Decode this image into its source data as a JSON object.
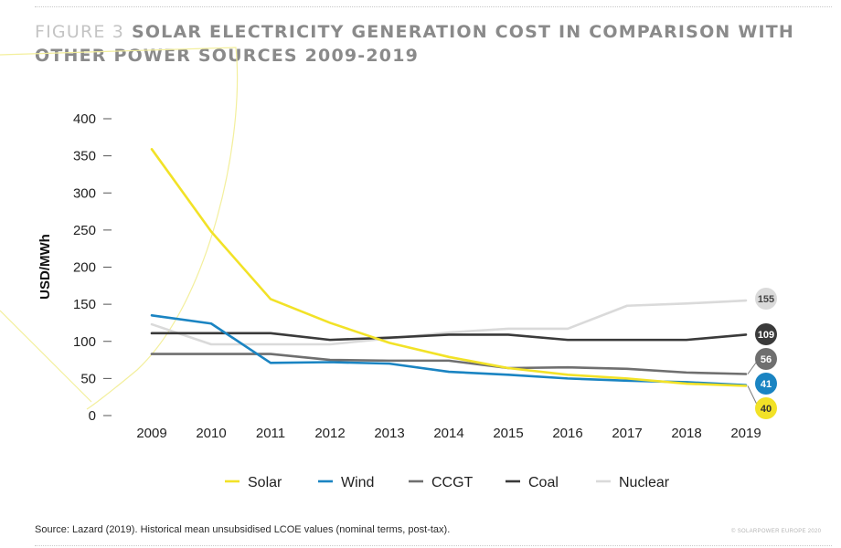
{
  "header": {
    "figure_label": "FIGURE 3",
    "title": "SOLAR ELECTRICITY GENERATION COST IN COMPARISON WITH OTHER POWER SOURCES 2009-2019"
  },
  "footer": {
    "source": "Source: Lazard (2019). Historical mean unsubsidised LCOE values (nominal terms, post-tax).",
    "copyright": "© SOLARPOWER EUROPE 2020"
  },
  "chart_data": {
    "type": "line",
    "title": "SOLAR ELECTRICITY GENERATION COST IN COMPARISON WITH OTHER POWER SOURCES 2009-2019",
    "xlabel": "",
    "ylabel": "USD/MWh",
    "ylim": [
      0,
      400
    ],
    "yticks": [
      0,
      50,
      100,
      150,
      200,
      250,
      300,
      350,
      400
    ],
    "grid": false,
    "legend_position": "bottom",
    "categories": [
      "2009",
      "2010",
      "2011",
      "2012",
      "2013",
      "2014",
      "2015",
      "2016",
      "2017",
      "2018",
      "2019"
    ],
    "series": [
      {
        "name": "Solar",
        "color": "#f2e227",
        "end_label": "40",
        "end_text_color": "#333333",
        "values": [
          359,
          248,
          157,
          125,
          98,
          79,
          64,
          55,
          50,
          43,
          40
        ]
      },
      {
        "name": "Wind",
        "color": "#1a84c2",
        "end_label": "41",
        "end_text_color": "#ffffff",
        "values": [
          135,
          124,
          71,
          72,
          70,
          59,
          55,
          50,
          47,
          45,
          41
        ]
      },
      {
        "name": "CCGT",
        "color": "#6f6f6f",
        "end_label": "56",
        "end_text_color": "#ffffff",
        "values": [
          83,
          83,
          83,
          75,
          74,
          74,
          64,
          65,
          63,
          58,
          56
        ]
      },
      {
        "name": "Coal",
        "color": "#3a3a3a",
        "end_label": "109",
        "end_text_color": "#ffffff",
        "values": [
          111,
          111,
          111,
          102,
          105,
          109,
          109,
          102,
          102,
          102,
          109
        ]
      },
      {
        "name": "Nuclear",
        "color": "#dadada",
        "end_label": "155",
        "end_text_color": "#444444",
        "values": [
          123,
          96,
          96,
          96,
          104,
          112,
          117,
          117,
          148,
          151,
          155
        ]
      }
    ]
  }
}
